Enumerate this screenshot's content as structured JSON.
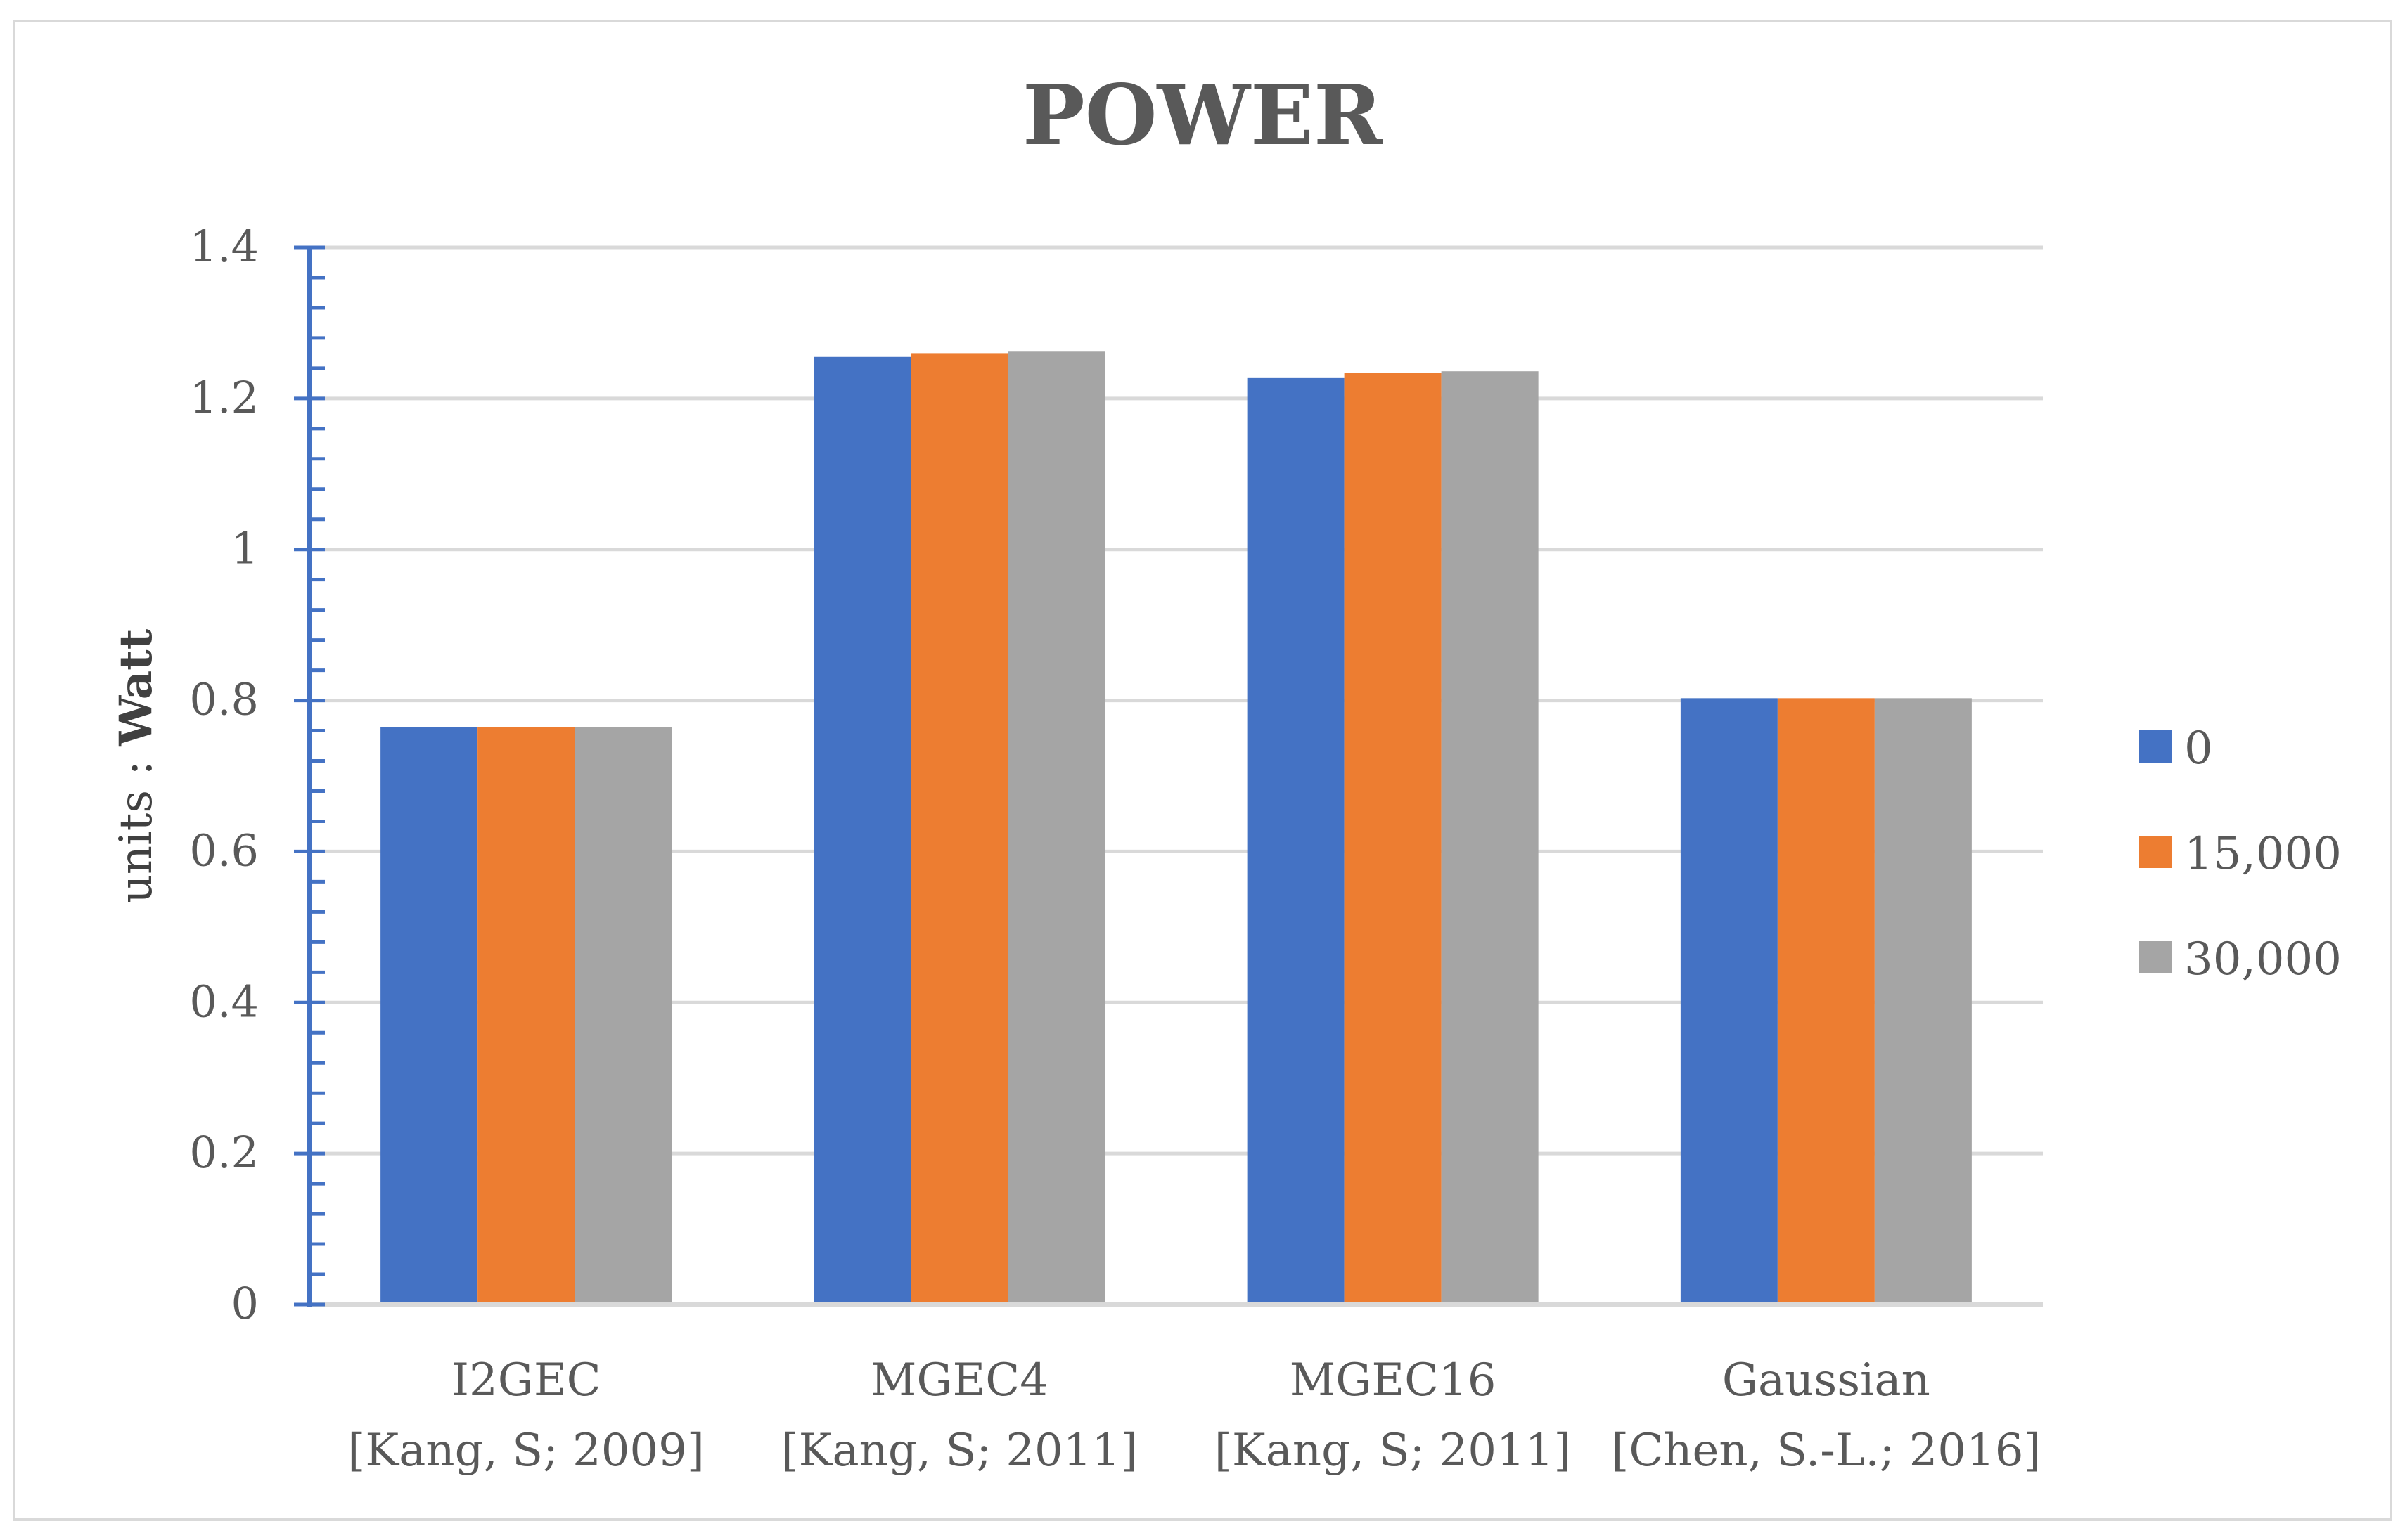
{
  "chart_data": {
    "type": "bar",
    "title": "POWER",
    "xlabel": "",
    "ylabel_prefix": "units : ",
    "ylabel_bold": "Watt",
    "ylim": [
      0,
      1.4
    ],
    "yticks": [
      "0",
      "0.2",
      "0.4",
      "0.6",
      "0.8",
      "1",
      "1.2",
      "1.4"
    ],
    "grid": true,
    "legend_position": "right",
    "categories": [
      {
        "line1": "I2GEC",
        "line2": "[Kang, S; 2009]"
      },
      {
        "line1": "MGEC4",
        "line2": "[Kang, S; 2011]"
      },
      {
        "line1": "MGEC16",
        "line2": "[Kang, S; 2011]"
      },
      {
        "line1": "Gaussian",
        "line2": "[Chen, S.-L.; 2016]"
      }
    ],
    "series": [
      {
        "name": "0",
        "color": "#4472c4",
        "values": [
          0.765,
          1.255,
          1.227,
          0.803
        ]
      },
      {
        "name": "15,000",
        "color": "#ed7d31",
        "values": [
          0.765,
          1.26,
          1.234,
          0.803
        ]
      },
      {
        "name": "30,000",
        "color": "#a5a5a5",
        "values": [
          0.765,
          1.262,
          1.236,
          0.803
        ]
      }
    ],
    "axis_color": "#4472c4",
    "grid_color": "#d9d9d9",
    "text_color": "#595959"
  }
}
